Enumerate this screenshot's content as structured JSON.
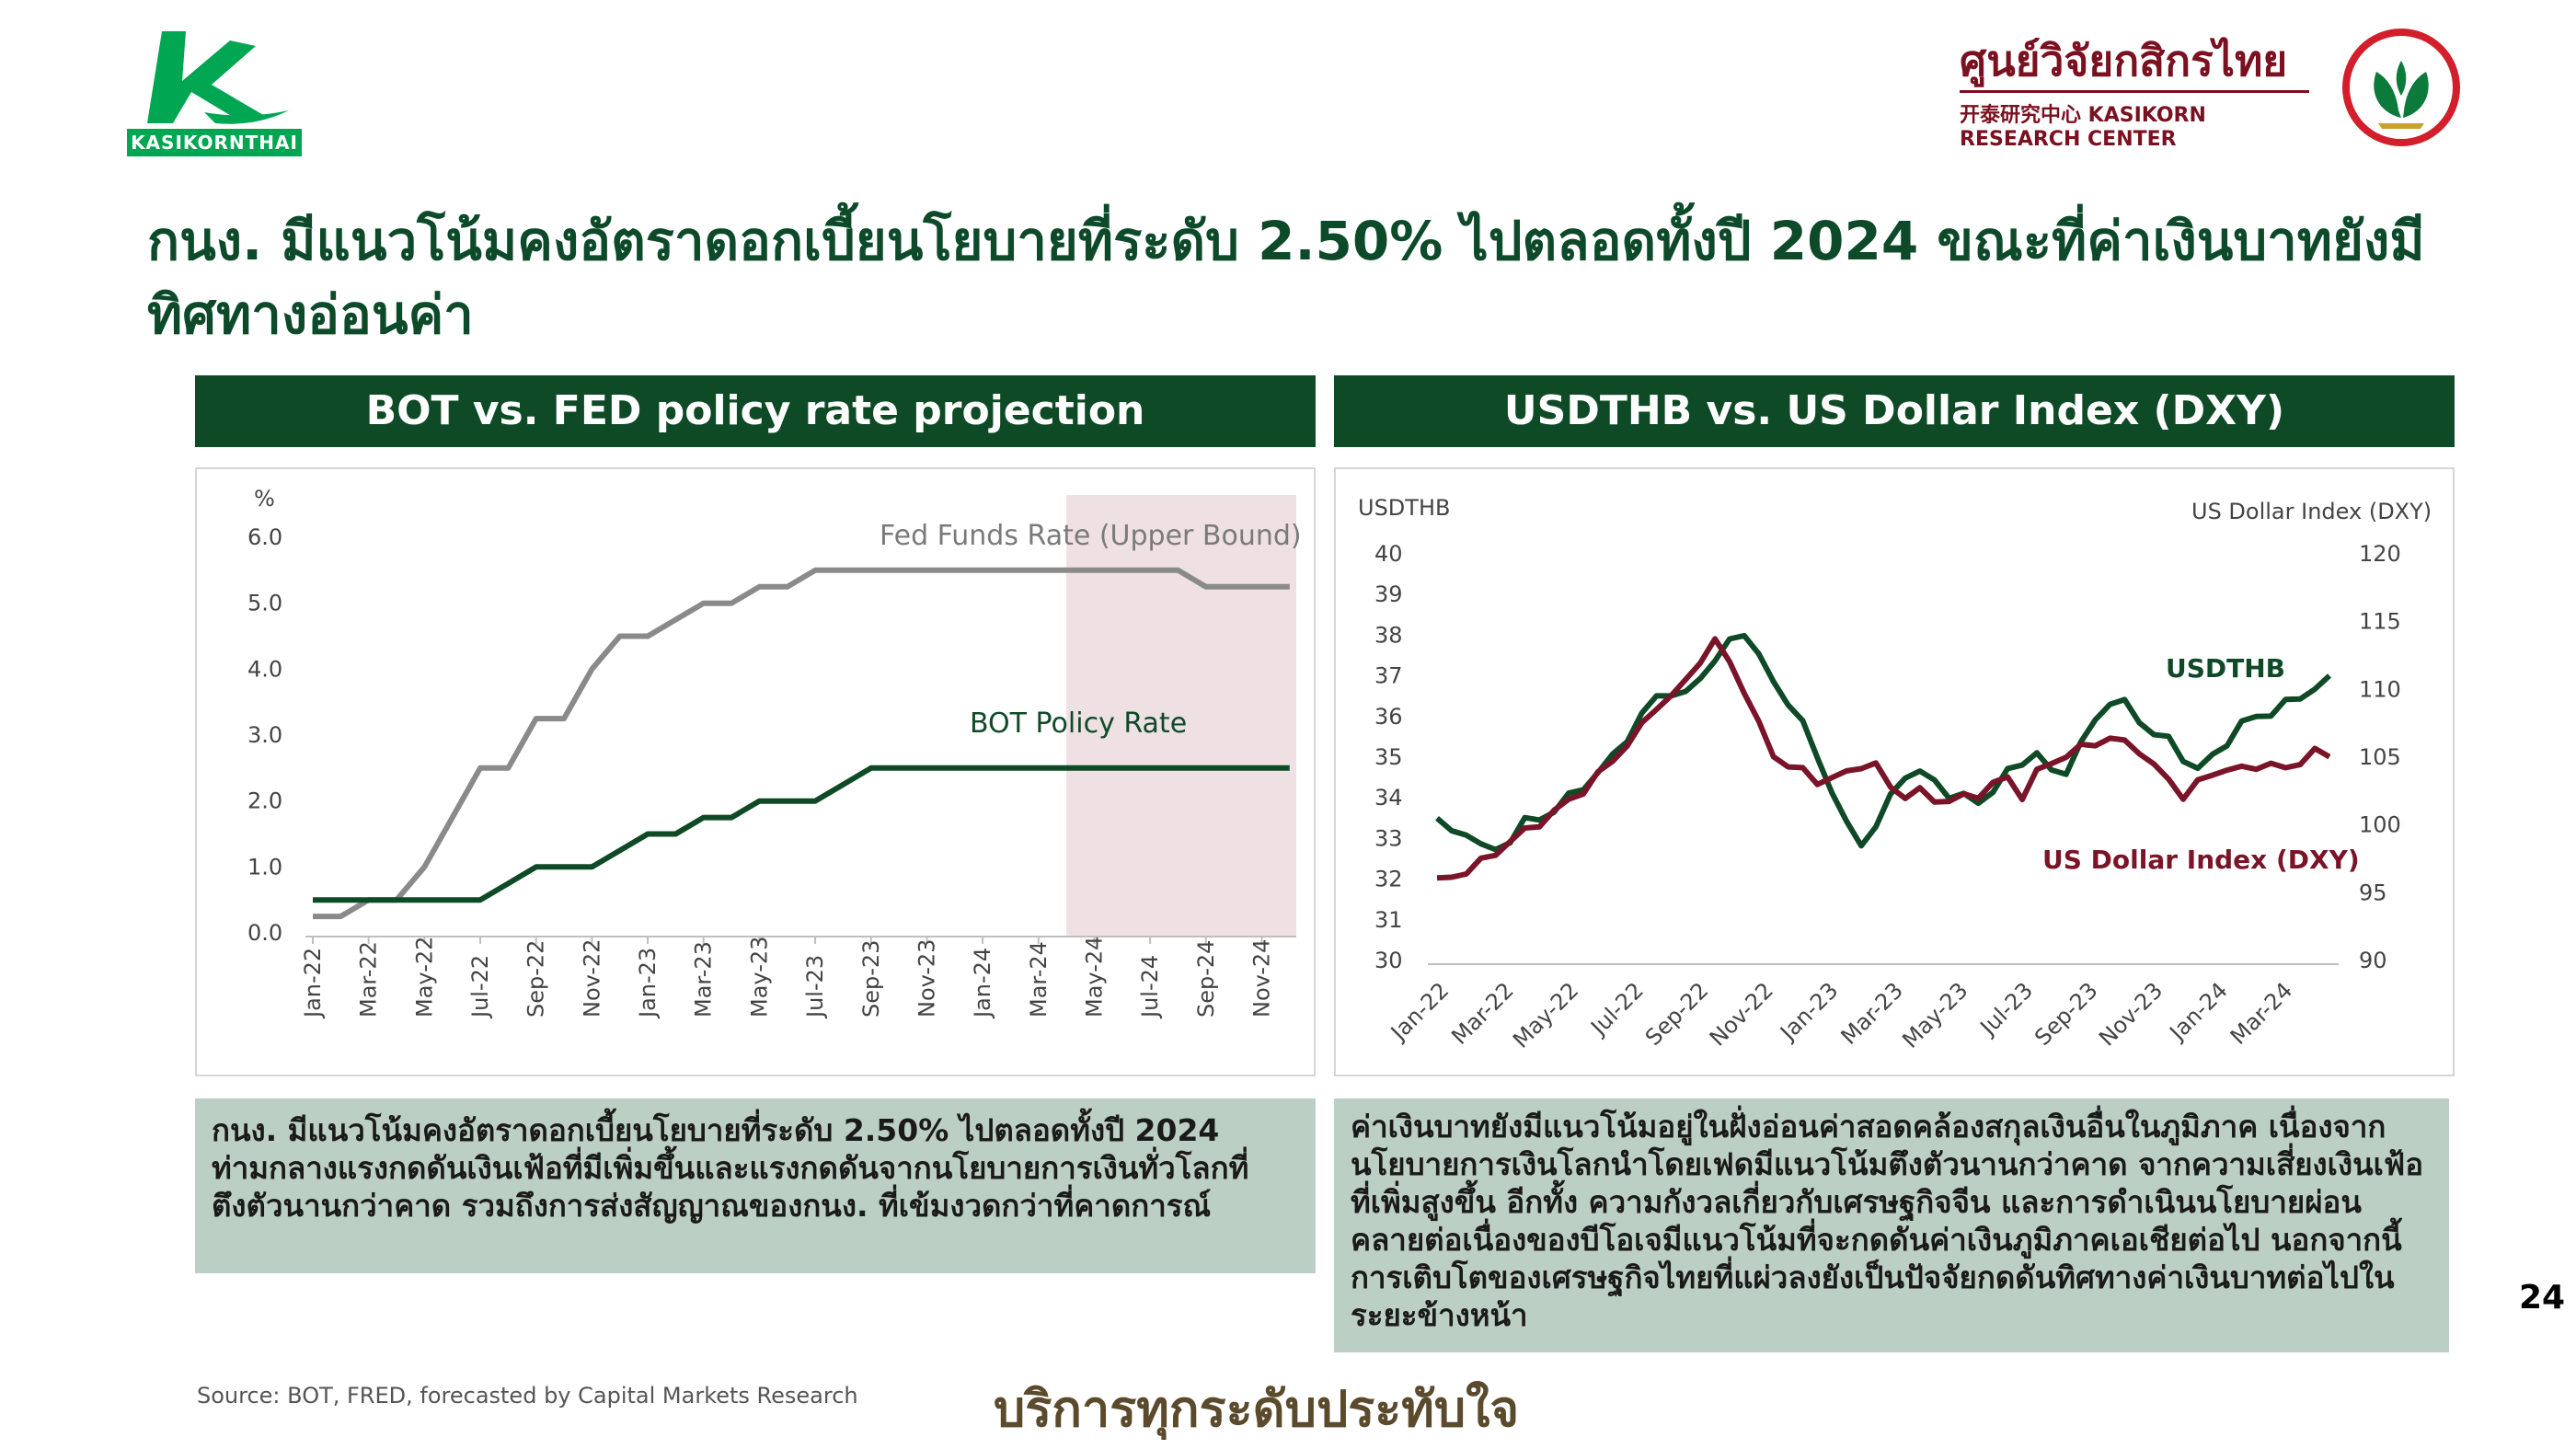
{
  "logo": {
    "wordmark": "KASIKORNTHAI",
    "icon": "k-leaf-icon"
  },
  "research_center": {
    "name_th": "ศูนย์วิจัยกสิกรไทย",
    "name_en": "开泰研究中心 KASIKORN RESEARCH CENTER",
    "seal_icon": "kasikorn-seal-icon"
  },
  "title": "กนง. มีแนวโน้มคงอัตราดอกเบี้ยนโยบายที่ระดับ 2.50% ไปตลอดทั้งปี 2024 ขณะที่ค่าเงินบาทยังมีทิศทางอ่อนค่า",
  "colors": {
    "dark_green": "#0f4a27",
    "fed_gray": "#8a8a8a",
    "dxy_maroon": "#7a1428",
    "forecast_shade": "#efe0e3",
    "note_bg": "#bccfc4"
  },
  "left_panel": {
    "header": "BOT vs. FED policy rate projection",
    "note": "กนง. มีแนวโน้มคงอัตราดอกเบี้ยนโยบายที่ระดับ 2.50% ไปตลอดทั้งปี 2024 ท่ามกลางแรงกดดันเงินเฟ้อที่มีเพิ่มขึ้นและแรงกดดันจากนโยบายการเงินทั่วโลกที่ตึงตัวนานกว่าคาด รวมถึงการส่งสัญญาณของกนง. ที่เข้มงวดกว่าที่คาดการณ์"
  },
  "right_panel": {
    "header": "USDTHB vs. US Dollar Index (DXY)",
    "note": "ค่าเงินบาทยังมีแนวโน้มอยู่ในฝั่งอ่อนค่าสอดคล้องสกุลเงินอื่นในภูมิภาค เนื่องจากนโยบายการเงินโลกนำโดยเฟดมีแนวโน้มตึงตัวนานกว่าคาด จากความเสี่ยงเงินเฟ้อที่เพิ่มสูงขึ้น อีกทั้ง ความกังวลเกี่ยวกับเศรษฐกิจจีน และการดำเนินนโยบายผ่อนคลายต่อเนื่องของบีโอเจมีแนวโน้มที่จะกดดันค่าเงินภูมิภาคเอเชียต่อไป นอกจากนี้ การเติบโตของเศรษฐกิจไทยที่แผ่วลงยังเป็นปัจจัยกดดันทิศทางค่าเงินบาทต่อไปในระยะข้างหน้า"
  },
  "page_number": "24",
  "source": "Source: BOT, FRED, forecasted by Capital Markets Research",
  "slogan": "บริการทุกระดับประทับใจ",
  "chart_data": [
    {
      "type": "line",
      "ylabel": "%",
      "ylim": [
        0,
        6
      ],
      "yticks": [
        "0.0",
        "1.0",
        "2.0",
        "3.0",
        "4.0",
        "5.0",
        "6.0"
      ],
      "tick_labels": [
        "Jan-22",
        "Mar-22",
        "May-22",
        "Jul-22",
        "Sep-22",
        "Nov-22",
        "Jan-23",
        "Mar-23",
        "May-23",
        "Jul-23",
        "Sep-23",
        "Nov-23",
        "Jan-24",
        "Mar-24",
        "May-24",
        "Jul-24",
        "Sep-24",
        "Nov-24"
      ],
      "forecast_shade": {
        "from": "Apr-24",
        "to": "Dec-24"
      },
      "grid": false,
      "series": [
        {
          "name": "Fed Funds Rate (Upper Bound)",
          "color": "#8a8a8a",
          "values": [
            0.25,
            0.25,
            0.5,
            0.5,
            1.0,
            1.75,
            2.5,
            2.5,
            3.25,
            3.25,
            4.0,
            4.5,
            4.5,
            4.75,
            5.0,
            5.0,
            5.25,
            5.25,
            5.5,
            5.5,
            5.5,
            5.5,
            5.5,
            5.5,
            5.5,
            5.5,
            5.5,
            5.5,
            5.5,
            5.5,
            5.5,
            5.5,
            5.25,
            5.25,
            5.25,
            5.25
          ]
        },
        {
          "name": "BOT Policy Rate",
          "color": "#0f4a27",
          "values": [
            0.5,
            0.5,
            0.5,
            0.5,
            0.5,
            0.5,
            0.5,
            0.75,
            1.0,
            1.0,
            1.0,
            1.25,
            1.5,
            1.5,
            1.75,
            1.75,
            2.0,
            2.0,
            2.0,
            2.25,
            2.5,
            2.5,
            2.5,
            2.5,
            2.5,
            2.5,
            2.5,
            2.5,
            2.5,
            2.5,
            2.5,
            2.5,
            2.5,
            2.5,
            2.5,
            2.5
          ]
        }
      ]
    },
    {
      "type": "line",
      "ylabel": "USDTHB",
      "y2label": "US Dollar Index (DXY)",
      "ylim": [
        30,
        40
      ],
      "y2lim": [
        90,
        120
      ],
      "yticks": [
        "30",
        "31",
        "32",
        "33",
        "34",
        "35",
        "36",
        "37",
        "38",
        "39",
        "40"
      ],
      "y2ticks": [
        "90",
        "95",
        "100",
        "105",
        "110",
        "115",
        "120"
      ],
      "tick_labels": [
        "Jan-22",
        "Mar-22",
        "May-22",
        "Jul-22",
        "Sep-22",
        "Nov-22",
        "Jan-23",
        "Mar-23",
        "May-23",
        "Jul-23",
        "Sep-23",
        "Nov-23",
        "Jan-24",
        "Mar-24"
      ],
      "grid": false,
      "series": [
        {
          "name": "USDTHB",
          "axis": "left",
          "color": "#0f4a27",
          "values": [
            33.5,
            33.1,
            33.2,
            32.8,
            32.7,
            33.0,
            33.4,
            33.5,
            33.7,
            34.0,
            34.3,
            34.6,
            35.0,
            35.5,
            36.0,
            36.5,
            36.6,
            36.5,
            37.0,
            37.4,
            37.8,
            38.1,
            37.5,
            36.8,
            36.4,
            35.8,
            35.0,
            34.2,
            33.3,
            32.9,
            33.3,
            34.0,
            34.6,
            34.6,
            34.4,
            34.1,
            34.0,
            33.9,
            34.2,
            34.6,
            34.9,
            35.1,
            34.6,
            34.7,
            35.3,
            35.9,
            36.4,
            36.3,
            35.9,
            35.6,
            35.4,
            35.0,
            34.7,
            35.0,
            35.4,
            35.8,
            36.0,
            36.1,
            36.3,
            36.5,
            36.7,
            36.9
          ]
        },
        {
          "name": "US Dollar Index (DXY)",
          "axis": "right",
          "color": "#7a1428",
          "values": [
            95.8,
            96.2,
            96.6,
            97.2,
            98.0,
            98.8,
            99.5,
            100.2,
            100.9,
            101.8,
            102.6,
            103.6,
            104.8,
            106.0,
            107.2,
            108.8,
            109.5,
            110.5,
            112.3,
            113.5,
            112.0,
            110.0,
            107.3,
            105.2,
            104.4,
            103.9,
            103.3,
            103.4,
            103.8,
            104.5,
            104.3,
            102.8,
            102.2,
            102.4,
            101.9,
            101.8,
            102.0,
            102.3,
            103.0,
            103.4,
            102.2,
            103.8,
            104.6,
            105.2,
            105.6,
            106.1,
            106.4,
            106.0,
            105.6,
            104.3,
            103.3,
            102.2,
            103.0,
            103.8,
            104.2,
            104.0,
            104.4,
            104.5,
            104.0,
            104.8,
            105.4,
            105.0
          ]
        }
      ]
    }
  ]
}
